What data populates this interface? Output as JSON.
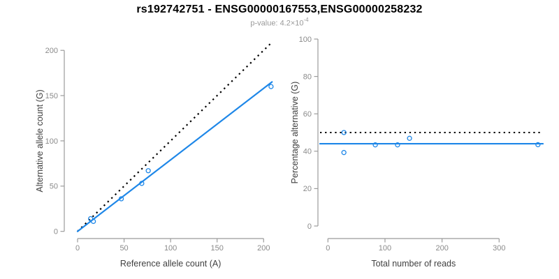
{
  "header": {
    "title": "rs192742751 - ENSG00000167553,ENSG00000258232",
    "subtitle_label": "p-value:",
    "subtitle_value_base": "4.2×10",
    "subtitle_value_exponent": "-4"
  },
  "chart_colors": {
    "accent_blue": "#1e87e8",
    "line_black": "#000000",
    "axis_line_gray": "#9b9b9b",
    "tick_label_gray": "#8a8a8a",
    "axis_title_color": "#404040",
    "subtitle_gray": "#999999",
    "title_color": "#000000"
  },
  "chart_data": [
    {
      "type": "scatter",
      "panel": "allele-counts",
      "title": "",
      "xlabel": "Reference allele count (A)",
      "ylabel": "Alternative allele count (G)",
      "xticks": [
        0,
        50,
        100,
        150,
        200
      ],
      "yticks": [
        0,
        50,
        100,
        150,
        200
      ],
      "xlim": [
        0,
        216
      ],
      "ylim": [
        0,
        212
      ],
      "grid": false,
      "legend": "none",
      "points": [
        [
          14,
          14
        ],
        [
          17,
          11
        ],
        [
          47,
          36
        ],
        [
          69,
          53
        ],
        [
          76,
          67
        ],
        [
          208,
          160
        ]
      ],
      "identity_line": {
        "slope": 1,
        "intercept": 0,
        "x_end": 207,
        "style": "dotted",
        "color_key": "line_black"
      },
      "fit_line": {
        "slope": 0.79,
        "intercept": 0,
        "x_end": 209,
        "style": "solid",
        "color_key": "accent_blue"
      }
    },
    {
      "type": "scatter",
      "panel": "percentage-vs-reads",
      "title": "",
      "xlabel": "Total number of reads",
      "ylabel": "Percentage alternative (G)",
      "xticks": [
        0,
        100,
        200,
        300
      ],
      "yticks": [
        0,
        20,
        40,
        60,
        80,
        100
      ],
      "xlim": [
        0,
        375
      ],
      "ylim": [
        0,
        100
      ],
      "grid": false,
      "legend": "none",
      "points": [
        [
          28,
          50
        ],
        [
          28,
          39.3
        ],
        [
          83,
          43.4
        ],
        [
          122,
          43.4
        ],
        [
          143,
          46.9
        ],
        [
          368,
          43.5
        ]
      ],
      "expected_line": {
        "y": 50,
        "style": "dotted",
        "color_key": "line_black"
      },
      "mean_line": {
        "y": 44,
        "style": "solid",
        "color_key": "accent_blue"
      }
    }
  ]
}
